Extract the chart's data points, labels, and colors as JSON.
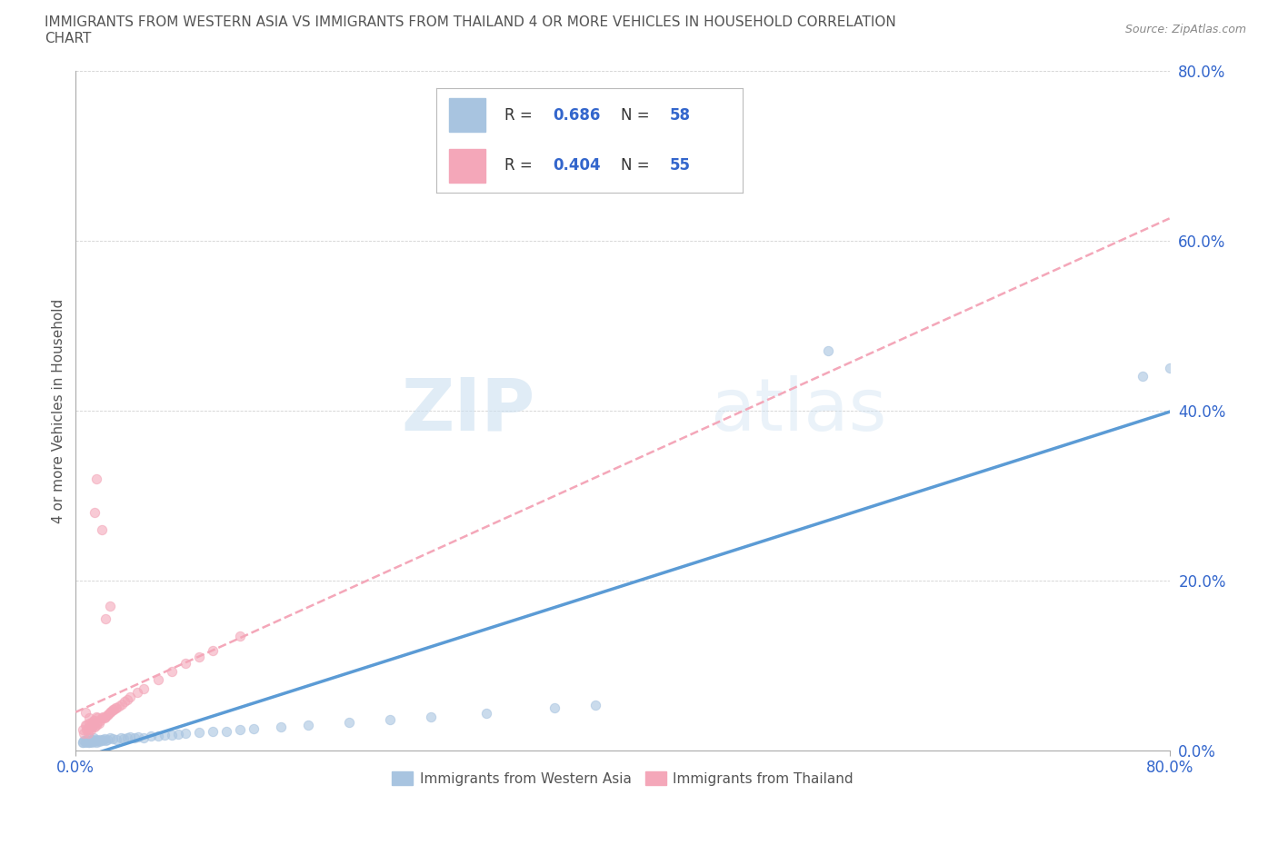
{
  "title_line1": "IMMIGRANTS FROM WESTERN ASIA VS IMMIGRANTS FROM THAILAND 4 OR MORE VEHICLES IN HOUSEHOLD CORRELATION",
  "title_line2": "CHART",
  "source_text": "Source: ZipAtlas.com",
  "ylabel": "4 or more Vehicles in Household",
  "xmin": 0.0,
  "xmax": 0.8,
  "ymin": 0.0,
  "ymax": 0.8,
  "ytick_labels": [
    "0.0%",
    "20.0%",
    "40.0%",
    "60.0%",
    "80.0%"
  ],
  "ytick_values": [
    0.0,
    0.2,
    0.4,
    0.6,
    0.8
  ],
  "color_western_asia": "#a8c4e0",
  "color_thailand": "#f4a7b9",
  "line_color_western_asia": "#5b9bd5",
  "line_color_thailand": "#f4a7b9",
  "R_western_asia": 0.686,
  "N_western_asia": 58,
  "R_thailand": 0.404,
  "N_thailand": 55,
  "legend_label_color": "#3366cc",
  "watermark_zip": "ZIP",
  "watermark_atlas": "atlas",
  "background_color": "#ffffff",
  "scatter_alpha": 0.6,
  "scatter_size": 55,
  "western_asia_x": [
    0.005,
    0.005,
    0.006,
    0.007,
    0.008,
    0.008,
    0.009,
    0.01,
    0.01,
    0.01,
    0.011,
    0.012,
    0.012,
    0.013,
    0.013,
    0.014,
    0.015,
    0.015,
    0.016,
    0.017,
    0.018,
    0.019,
    0.02,
    0.021,
    0.022,
    0.023,
    0.025,
    0.027,
    0.03,
    0.033,
    0.035,
    0.038,
    0.04,
    0.043,
    0.046,
    0.05,
    0.055,
    0.06,
    0.065,
    0.07,
    0.075,
    0.08,
    0.09,
    0.1,
    0.11,
    0.12,
    0.13,
    0.15,
    0.17,
    0.2,
    0.23,
    0.26,
    0.3,
    0.35,
    0.38,
    0.55,
    0.78,
    0.8
  ],
  "western_asia_y": [
    0.01,
    0.01,
    0.012,
    0.01,
    0.011,
    0.013,
    0.01,
    0.01,
    0.012,
    0.015,
    0.011,
    0.01,
    0.013,
    0.012,
    0.015,
    0.011,
    0.01,
    0.013,
    0.012,
    0.011,
    0.013,
    0.012,
    0.013,
    0.014,
    0.012,
    0.013,
    0.015,
    0.014,
    0.013,
    0.015,
    0.014,
    0.015,
    0.016,
    0.015,
    0.016,
    0.015,
    0.017,
    0.017,
    0.018,
    0.018,
    0.019,
    0.02,
    0.021,
    0.022,
    0.023,
    0.025,
    0.026,
    0.028,
    0.03,
    0.033,
    0.036,
    0.04,
    0.044,
    0.05,
    0.053,
    0.47,
    0.44,
    0.45
  ],
  "thailand_x": [
    0.005,
    0.006,
    0.007,
    0.007,
    0.008,
    0.008,
    0.009,
    0.009,
    0.01,
    0.01,
    0.01,
    0.011,
    0.011,
    0.012,
    0.012,
    0.013,
    0.013,
    0.014,
    0.014,
    0.015,
    0.015,
    0.016,
    0.016,
    0.017,
    0.018,
    0.019,
    0.02,
    0.021,
    0.022,
    0.023,
    0.024,
    0.025,
    0.026,
    0.027,
    0.028,
    0.029,
    0.03,
    0.032,
    0.034,
    0.036,
    0.038,
    0.04,
    0.045,
    0.05,
    0.06,
    0.07,
    0.08,
    0.09,
    0.1,
    0.12,
    0.014,
    0.015,
    0.019,
    0.022,
    0.025
  ],
  "thailand_y": [
    0.025,
    0.02,
    0.03,
    0.045,
    0.025,
    0.03,
    0.025,
    0.02,
    0.028,
    0.032,
    0.038,
    0.025,
    0.03,
    0.028,
    0.033,
    0.03,
    0.035,
    0.028,
    0.035,
    0.03,
    0.04,
    0.033,
    0.038,
    0.032,
    0.035,
    0.038,
    0.04,
    0.038,
    0.04,
    0.042,
    0.043,
    0.045,
    0.046,
    0.048,
    0.048,
    0.05,
    0.05,
    0.052,
    0.055,
    0.058,
    0.06,
    0.063,
    0.068,
    0.073,
    0.083,
    0.093,
    0.103,
    0.11,
    0.118,
    0.135,
    0.28,
    0.32,
    0.26,
    0.155,
    0.17
  ]
}
